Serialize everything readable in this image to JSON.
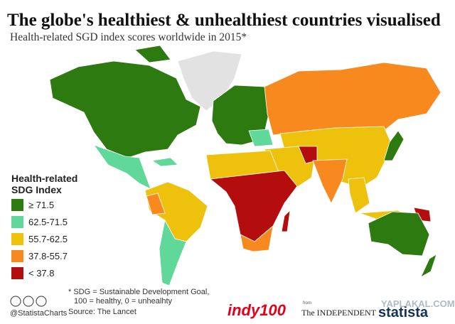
{
  "header": {
    "title": "The globe's healthiest & unhealthiest countries visualised",
    "subtitle": "Health-related SGD index scores worldwide in 2015*"
  },
  "legend": {
    "title_lines": [
      "Health-related",
      "SDG Index"
    ],
    "items": [
      {
        "label": "≥ 71.5",
        "color": "#2d7a10"
      },
      {
        "label": "62.5-71.5",
        "color": "#5fd89a"
      },
      {
        "label": "55.7-62.5",
        "color": "#eec20c"
      },
      {
        "label": "37.8-55.7",
        "color": "#f7891e"
      },
      {
        "label": "< 37.8",
        "color": "#b30d0d"
      }
    ]
  },
  "footer": {
    "notes": [
      "* SDG = Sustainable Development Goal,",
      "100 = healthy, 0 = unhealhty"
    ],
    "source": "Source: The Lancet",
    "handle": "@StatistaCharts",
    "from": "from",
    "logos": [
      "indy100",
      "The INDEPENDENT",
      "statista"
    ],
    "watermark": "YAPLAKAL.COM"
  }
}
